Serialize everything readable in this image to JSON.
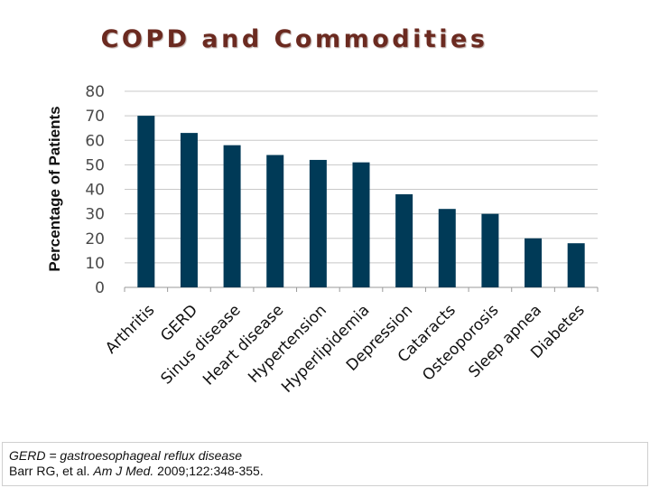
{
  "slide": {
    "title": "COPD and Commodities"
  },
  "chart_data": {
    "type": "bar",
    "title": "",
    "ylabel": "Percentage of Patients",
    "xlabel": "",
    "ylim": [
      0,
      80
    ],
    "yticks": [
      0,
      10,
      20,
      30,
      40,
      50,
      60,
      70,
      80
    ],
    "grid": true,
    "legend": "none",
    "bar_color": "#003a57",
    "categories": [
      "Arthritis",
      "GERD",
      "Sinus disease",
      "Heart disease",
      "Hypertension",
      "Hyperlipidemia",
      "Depression",
      "Cataracts",
      "Osteoporosis",
      "Sleep apnea",
      "Diabetes"
    ],
    "values": [
      70,
      63,
      58,
      54,
      52,
      51,
      38,
      32,
      30,
      20,
      18
    ]
  },
  "footnote": {
    "abbreviation": "GERD = gastroesophageal reflux disease",
    "citation_prefix": "Barr RG, et al. ",
    "citation_journal": "Am J Med.",
    "citation_suffix": " 2009;122:348-355."
  }
}
